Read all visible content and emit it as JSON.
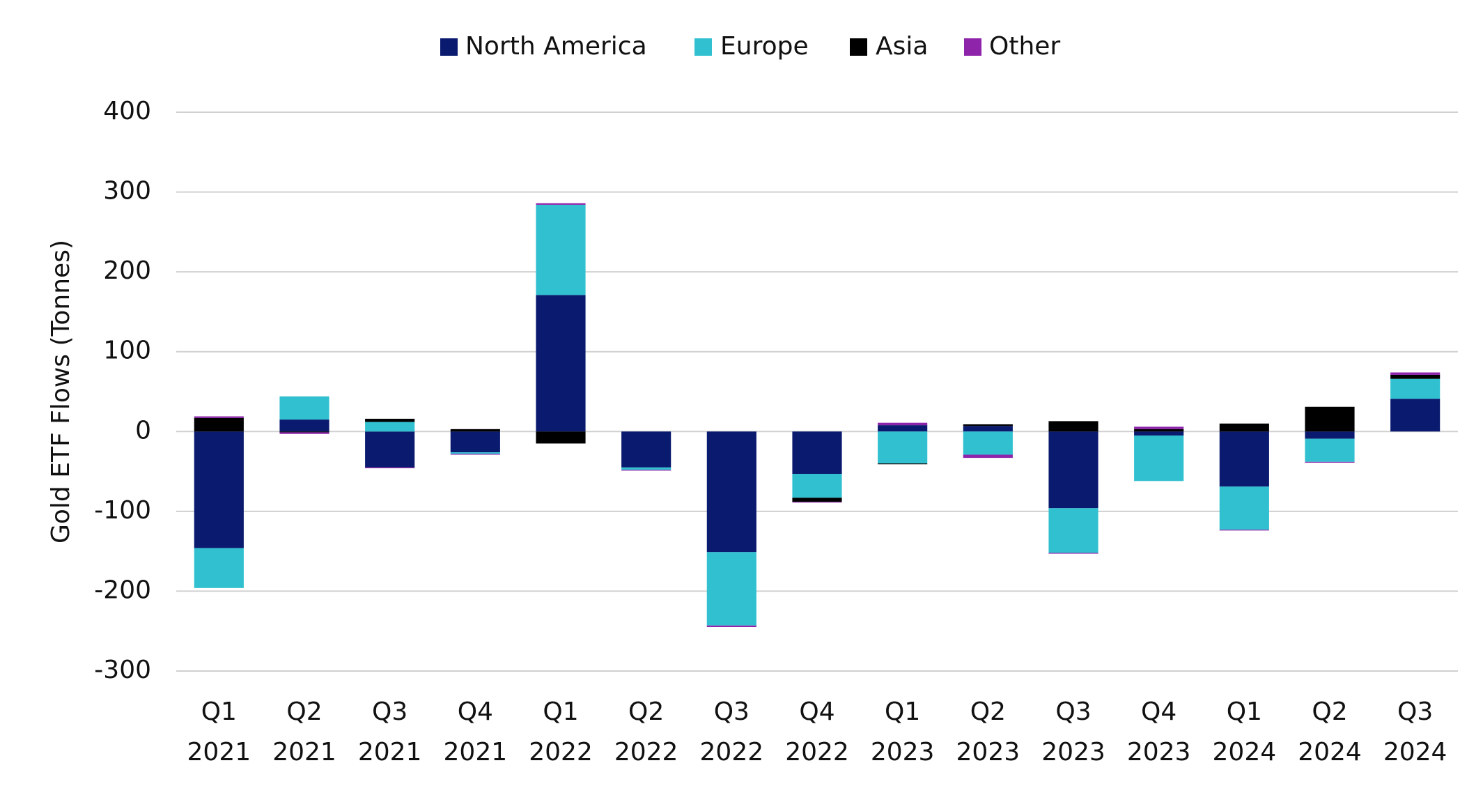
{
  "chart_data": {
    "type": "stacked_bar",
    "y_label": "Gold ETF Flows (Tonnes)",
    "categories": [
      [
        "Q1",
        "2021"
      ],
      [
        "Q2",
        "2021"
      ],
      [
        "Q3",
        "2021"
      ],
      [
        "Q4",
        "2021"
      ],
      [
        "Q1",
        "2022"
      ],
      [
        "Q2",
        "2022"
      ],
      [
        "Q3",
        "2022"
      ],
      [
        "Q4",
        "2022"
      ],
      [
        "Q1",
        "2023"
      ],
      [
        "Q2",
        "2023"
      ],
      [
        "Q3",
        "2023"
      ],
      [
        "Q4",
        "2023"
      ],
      [
        "Q1",
        "2024"
      ],
      [
        "Q2",
        "2024"
      ],
      [
        "Q3",
        "2024"
      ]
    ],
    "series": [
      {
        "name": "North America",
        "color": "#0a1a6e",
        "values": [
          -146,
          15,
          -45,
          -26,
          171,
          -45,
          -151,
          -53,
          8,
          7,
          -96,
          -5,
          -69,
          -9,
          41
        ]
      },
      {
        "name": "Europe",
        "color": "#31c0d0",
        "values": [
          -50,
          29,
          12,
          -2,
          113,
          -3,
          -92,
          -30,
          -40,
          -29,
          -56,
          -57,
          -54,
          -29,
          25
        ]
      },
      {
        "name": "Asia",
        "color": "#000000",
        "values": [
          17,
          -1,
          4,
          3,
          -15,
          0,
          0,
          -5,
          -1,
          2,
          13,
          3,
          10,
          31,
          5
        ]
      },
      {
        "name": "Other",
        "color": "#8e24aa",
        "values": [
          2,
          -2,
          -1,
          -1,
          2,
          -1,
          -2,
          -1,
          3,
          -4,
          -1,
          3,
          -1,
          -1,
          3
        ]
      }
    ],
    "ylim": [
      -300,
      400
    ],
    "yticks": [
      -300,
      -200,
      -100,
      0,
      100,
      200,
      300,
      400
    ],
    "grid": true,
    "legend": "top"
  }
}
